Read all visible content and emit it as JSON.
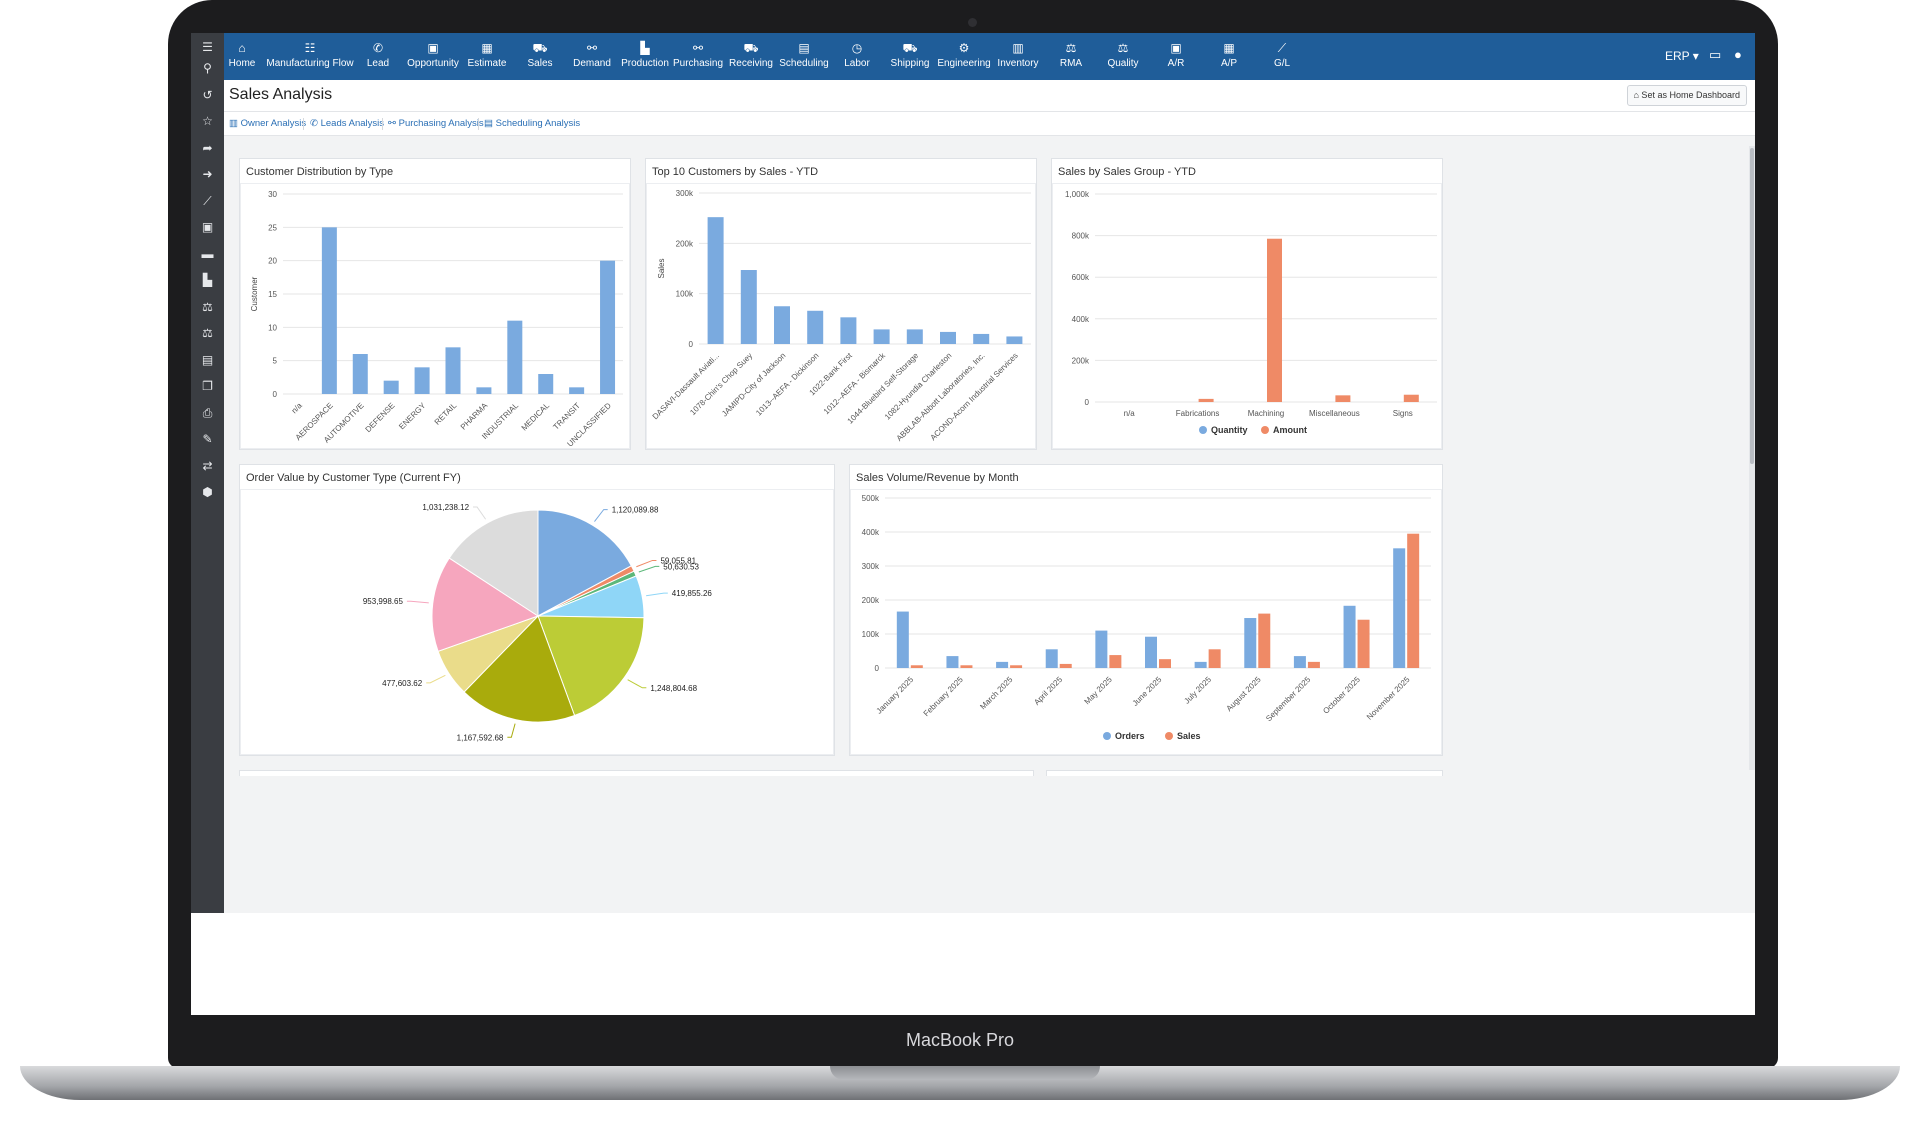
{
  "device": {
    "label": "MacBook Pro"
  },
  "topnav": {
    "items": [
      {
        "label": "Home",
        "icon": "home-icon",
        "glyph": "⌂"
      },
      {
        "label": "Manufacturing Flow",
        "icon": "list-icon",
        "glyph": "☷"
      },
      {
        "label": "Lead",
        "icon": "phone-icon",
        "glyph": "✆"
      },
      {
        "label": "Opportunity",
        "icon": "briefcase-icon",
        "glyph": "▣"
      },
      {
        "label": "Estimate",
        "icon": "calculator-icon",
        "glyph": "▦"
      },
      {
        "label": "Sales",
        "icon": "cart-icon",
        "glyph": "⛟"
      },
      {
        "label": "Demand",
        "icon": "link-icon",
        "glyph": "⚯"
      },
      {
        "label": "Production",
        "icon": "factory-icon",
        "glyph": "▙"
      },
      {
        "label": "Purchasing",
        "icon": "link-icon",
        "glyph": "⚯"
      },
      {
        "label": "Receiving",
        "icon": "truck-icon",
        "glyph": "⛟"
      },
      {
        "label": "Scheduling",
        "icon": "calendar-icon",
        "glyph": "▤"
      },
      {
        "label": "Labor",
        "icon": "clock-icon",
        "glyph": "◷"
      },
      {
        "label": "Shipping",
        "icon": "truck-icon",
        "glyph": "⛟"
      },
      {
        "label": "Engineering",
        "icon": "gears-icon",
        "glyph": "⚙"
      },
      {
        "label": "Inventory",
        "icon": "building-icon",
        "glyph": "▥"
      },
      {
        "label": "RMA",
        "icon": "scale-icon",
        "glyph": "⚖"
      },
      {
        "label": "Quality",
        "icon": "scale-icon",
        "glyph": "⚖"
      },
      {
        "label": "A/R",
        "icon": "money-icon",
        "glyph": "▣"
      },
      {
        "label": "A/P",
        "icon": "calculator-icon",
        "glyph": "▦"
      },
      {
        "label": "G/L",
        "icon": "line-chart-icon",
        "glyph": "⟋"
      }
    ],
    "erp_label": "ERP ▾"
  },
  "leftbar": {
    "icons": [
      "menu-icon",
      "search-icon",
      "history-icon",
      "star-icon",
      "share-icon",
      "sign-in-icon",
      "line-chart-icon",
      "money-icon",
      "briefcase-icon",
      "factory-icon",
      "scale-icon",
      "scale-icon",
      "calendar-icon",
      "copy-icon",
      "print-icon",
      "wrench-icon",
      "exchange-icon",
      "cubes-icon"
    ],
    "glyphs": [
      "☰",
      "⚲",
      "↺",
      "☆",
      "➦",
      "➜",
      "⟋",
      "▣",
      "▬",
      "▙",
      "⚖",
      "⚖",
      "▤",
      "❐",
      "⎙",
      "✎",
      "⇄",
      "⬢"
    ]
  },
  "page": {
    "title": "Sales Analysis",
    "home_button": "⌂ Set as Home Dashboard",
    "subtabs": [
      "Owner Analysis",
      "Leads Analysis",
      "Purchasing Analysis",
      "Scheduling Analysis"
    ],
    "subtab_glyphs": [
      "▥",
      "✆",
      "⚯",
      "▤"
    ]
  },
  "panels": {
    "p1_title": "Customer Distribution by Type",
    "p2_title": "Top 10 Customers by Sales - YTD",
    "p3_title": "Sales by Sales Group - YTD",
    "p4_title": "Order Value by Customer Type (Current FY)",
    "p5_title": "Sales Volume/Revenue by Month"
  },
  "colors": {
    "blue": "#7aaadf",
    "orange": "#ef8a66",
    "nav": "#1f5d99"
  },
  "chart_data": [
    {
      "type": "bar",
      "title": "Customer Distribution by Type",
      "ylabel": "Customer",
      "categories": [
        "n/a",
        "AEROSPACE",
        "AUTOMOTIVE",
        "DEFENSE",
        "ENERGY",
        "RETAIL",
        "PHARMA",
        "INDUSTRIAL",
        "MEDICAL",
        "TRANSIT",
        "UNCLASSIFIED"
      ],
      "values": [
        0,
        25,
        6,
        2,
        4,
        7,
        1,
        11,
        3,
        1,
        20
      ],
      "ylim": [
        0,
        30
      ],
      "yticks": [
        0,
        5,
        10,
        15,
        20,
        25,
        30
      ]
    },
    {
      "type": "bar",
      "title": "Top 10 Customers by Sales - YTD",
      "ylabel": "Sales",
      "categories": [
        "DASAVI-Dassault Aviati...",
        "1078-Chin's Chop Suey",
        "JAMIPD-City of Jackson",
        "1013--AEFA - Dickinson",
        "1022-Bank First",
        "1012--AEFA - Bismarck",
        "1044-Bluebird Self-Storage",
        "1082-Hyundia Charleston",
        "ABBLAB-Abbott Laboratories, Inc.",
        "ACOND-Acorn Industrial Services"
      ],
      "values": [
        252000,
        147000,
        75000,
        66000,
        53000,
        29000,
        29000,
        24000,
        20000,
        15000
      ],
      "ylim": [
        0,
        300000
      ],
      "yticks": [
        "0",
        "100k",
        "200k",
        "300k"
      ]
    },
    {
      "type": "bar",
      "title": "Sales by Sales Group - YTD",
      "categories": [
        "n/a",
        "Fabrications",
        "Machining",
        "Miscellaneous",
        "Signs"
      ],
      "series": [
        {
          "name": "Quantity",
          "values": [
            0,
            0,
            0,
            0,
            0
          ]
        },
        {
          "name": "Amount",
          "values": [
            0,
            15000,
            785000,
            32000,
            35000
          ]
        }
      ],
      "ylim": [
        0,
        1000000
      ],
      "yticks": [
        "0",
        "200k",
        "400k",
        "600k",
        "800k",
        "1,000k"
      ],
      "legend": "bottom"
    },
    {
      "type": "pie",
      "title": "Order Value by Customer Type (Current FY)",
      "slices": [
        {
          "label": "1,120,089.88",
          "value": 1120089.88,
          "color": "#7aaadf"
        },
        {
          "label": "59,055.81",
          "value": 59055.81,
          "color": "#ef8a66"
        },
        {
          "label": "50,630.53",
          "value": 50630.53,
          "color": "#5cb87a"
        },
        {
          "label": "419,855.26",
          "value": 419855.26,
          "color": "#8fd6f7"
        },
        {
          "label": "1,248,804.68",
          "value": 1248804.68,
          "color": "#bccc36"
        },
        {
          "label": "1,167,592.68",
          "value": 1167592.68,
          "color": "#a9ab0c"
        },
        {
          "label": "477,603.62",
          "value": 477603.62,
          "color": "#eadc8a"
        },
        {
          "label": "953,998.65",
          "value": 953998.65,
          "color": "#f6a6be"
        },
        {
          "label": "1,031,238.12",
          "value": 1031238.12,
          "color": "#dcdcdc"
        }
      ]
    },
    {
      "type": "bar",
      "title": "Sales Volume/Revenue by Month",
      "categories": [
        "January 2025",
        "February 2025",
        "March 2025",
        "April 2025",
        "May 2025",
        "June 2025",
        "July 2025",
        "August 2025",
        "September 2025",
        "October 2025",
        "November 2025"
      ],
      "series": [
        {
          "name": "Orders",
          "values": [
            166000,
            35000,
            18000,
            55000,
            110000,
            92000,
            18000,
            147000,
            35000,
            183000,
            352000
          ]
        },
        {
          "name": "Sales",
          "values": [
            8000,
            8000,
            8000,
            12000,
            38000,
            26000,
            55000,
            160000,
            18000,
            142000,
            395000
          ]
        }
      ],
      "ylim": [
        0,
        500000
      ],
      "yticks": [
        "0",
        "100k",
        "200k",
        "300k",
        "400k",
        "500k"
      ],
      "legend": "bottom"
    }
  ]
}
